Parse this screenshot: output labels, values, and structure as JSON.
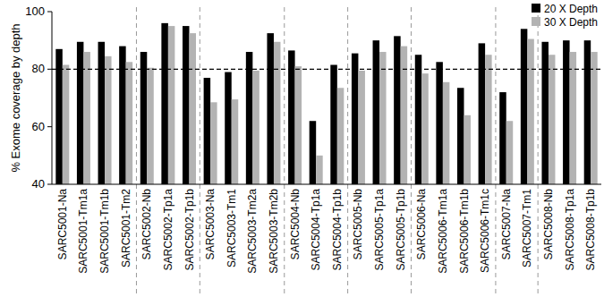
{
  "chart_data": {
    "type": "bar",
    "y_label": "% Exome coverage by depth",
    "categories": [
      "SARC5001-Na",
      "SARC5001-Tm1a",
      "SARC5001-Tm1b",
      "SARC5001-Tm2",
      "SARC5002-Nb",
      "SARC5002-Tp1a",
      "SARC5002-Tp1b",
      "SARC5003-Na",
      "SARC5003-Tm1",
      "SARC5003-Tm2a",
      "SARC5003-Tm2b",
      "SARC5004-Nb",
      "SARC5004-Tp1a",
      "SARC5004-Tp1b",
      "SARC5005-Nb",
      "SARC5005-Tp1a",
      "SARC5005-Tp1b",
      "SARC5006-Na",
      "SARC5006-Tm1a",
      "SARC5006-Tm1b",
      "SARC5006-Tm1c",
      "SARC5007-Na",
      "SARC5007-Tm1",
      "SARC5008-Nb",
      "SARC5008-Tp1a",
      "SARC5008-Tp1b"
    ],
    "series": [
      {
        "name": "20 X Depth",
        "color": "#000000",
        "values": [
          87,
          89.5,
          89.5,
          88,
          86,
          96,
          95,
          77,
          79,
          86,
          92.5,
          86.5,
          62,
          81.5,
          85.5,
          90,
          91.5,
          85,
          82.5,
          73.5,
          89,
          72,
          94,
          89.5,
          90,
          90
        ]
      },
      {
        "name": "30 X Depth",
        "color": "#b3b3b3",
        "values": [
          81.5,
          86,
          84.5,
          82.5,
          80.5,
          95,
          92.5,
          68.5,
          69.5,
          79.5,
          89.5,
          81,
          50,
          73.5,
          79.5,
          86,
          88,
          78.5,
          75.5,
          64,
          85,
          62,
          90.5,
          85,
          86,
          86
        ]
      }
    ],
    "ylim": [
      40,
      100
    ],
    "yticks": [
      40,
      60,
      80,
      100
    ],
    "threshold": 80,
    "legend": "top-right",
    "grid": false
  }
}
